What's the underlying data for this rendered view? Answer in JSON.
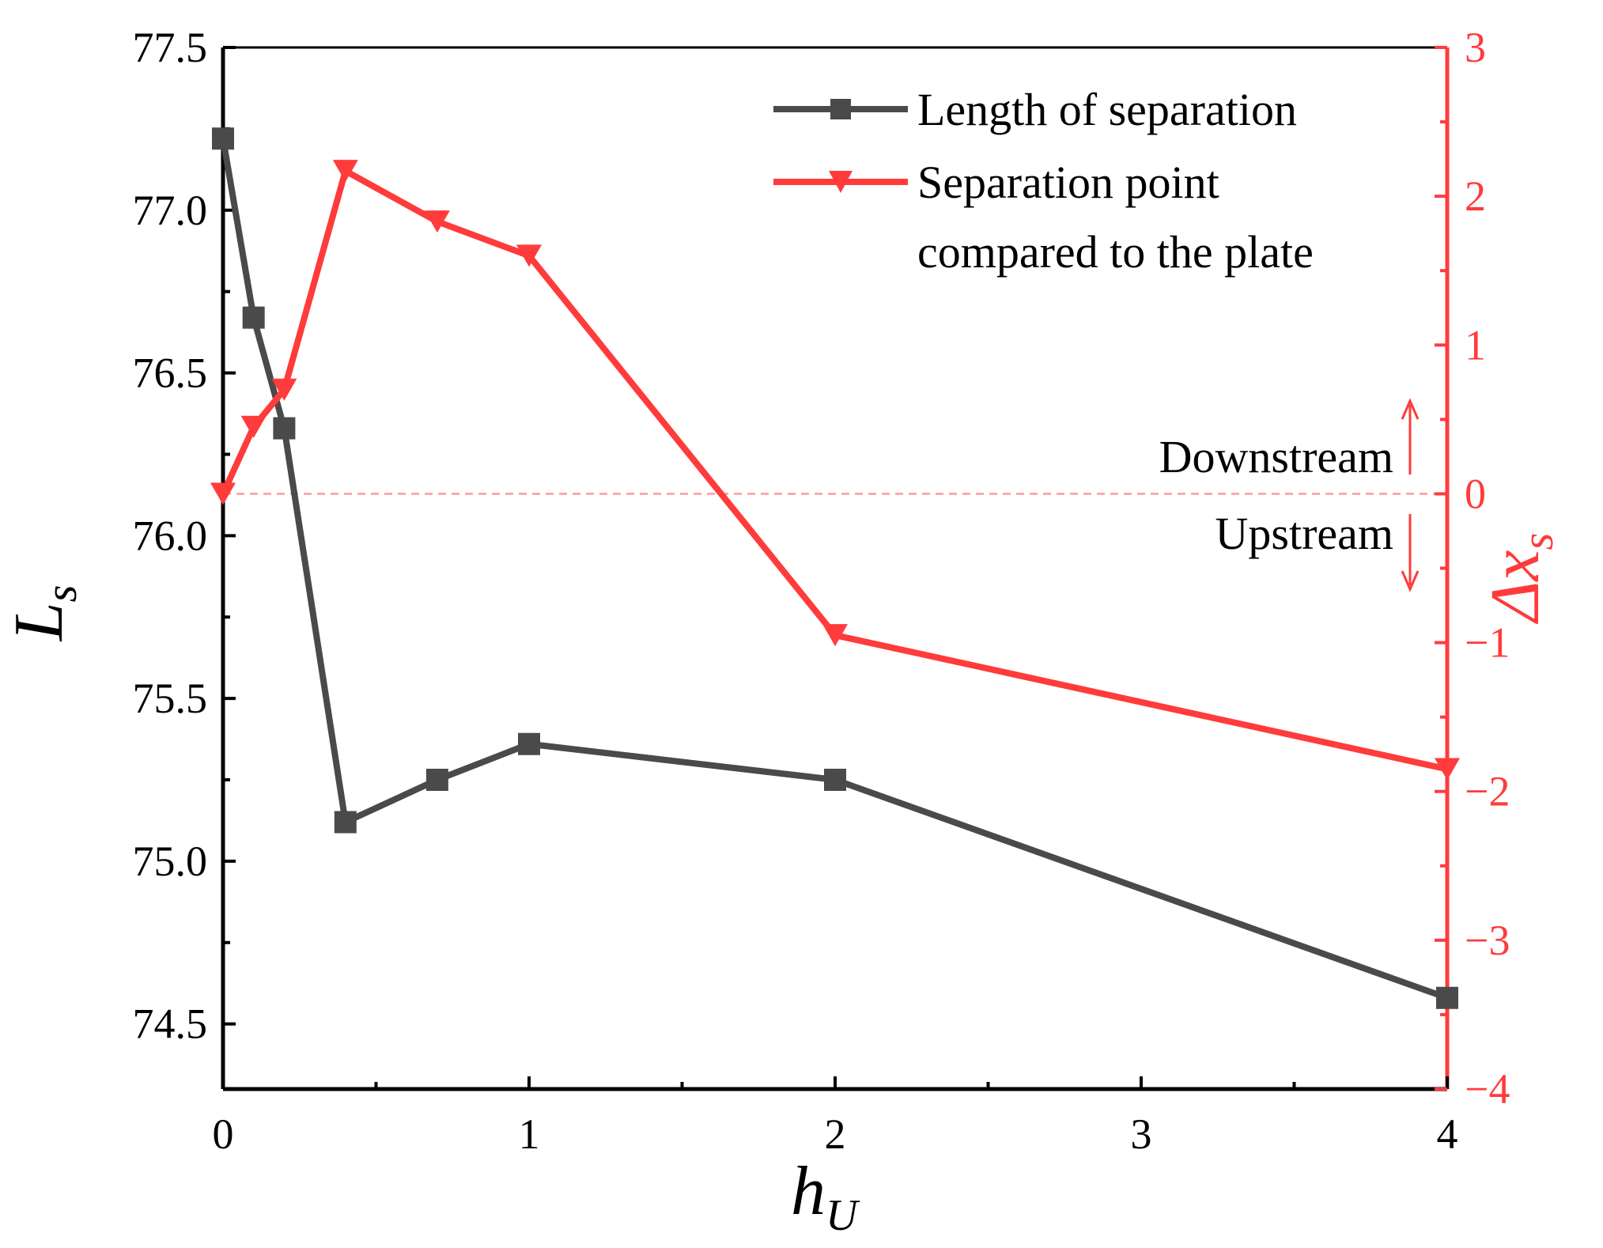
{
  "chart_data": {
    "type": "line",
    "xlabel": "h",
    "xlabel_sub": "U",
    "ylabel_left": "L",
    "ylabel_left_sub": "s",
    "ylabel_right_main": "Δx",
    "ylabel_right_sub": "s",
    "x_ticks": [
      {
        "value": 0,
        "label": "0"
      },
      {
        "value": 1,
        "label": "1"
      },
      {
        "value": 2,
        "label": "2"
      },
      {
        "value": 3,
        "label": "3"
      },
      {
        "value": 4,
        "label": "4"
      }
    ],
    "y_left_ticks": [
      "74.5",
      "75.0",
      "75.5",
      "76.0",
      "76.5",
      "77.0",
      "77.5"
    ],
    "y_right_ticks": [
      "−4",
      "−3",
      "−2",
      "−1",
      "0",
      "1",
      "2",
      "3"
    ],
    "ylim_left": [
      74.3,
      77.5
    ],
    "ylim_right": [
      -4,
      3
    ],
    "xlim": [
      0,
      4
    ],
    "series": [
      {
        "name": "Length of separation",
        "axis": "left",
        "color": "#4a4a4a",
        "marker": "square",
        "x": [
          0,
          0.1,
          0.2,
          0.4,
          0.7,
          1,
          2,
          4
        ],
        "y": [
          77.22,
          76.67,
          76.33,
          75.12,
          75.25,
          75.36,
          75.25,
          74.58
        ]
      },
      {
        "name": "Separation point compared to the plate",
        "axis": "right",
        "color": "#ff3b3b",
        "marker": "triangle-down",
        "x": [
          0,
          0.1,
          0.2,
          0.4,
          0.7,
          1,
          2,
          4
        ],
        "y": [
          0.0,
          0.45,
          0.7,
          2.17,
          1.83,
          1.6,
          -0.95,
          -1.85
        ]
      }
    ],
    "legend": {
      "position": "top-right",
      "entries": [
        "Length of separation",
        "Separation point",
        "compared to the plate"
      ]
    },
    "annotations": {
      "zero_line_value": 0,
      "downstream": "Downstream",
      "upstream": "Upstream"
    }
  },
  "colors": {
    "left_axis": "#000000",
    "right_axis": "#ff3b3b",
    "dark_series": "#4a4a4a",
    "red_series": "#ff3b3b",
    "zero_line": "#ff9a9a"
  }
}
